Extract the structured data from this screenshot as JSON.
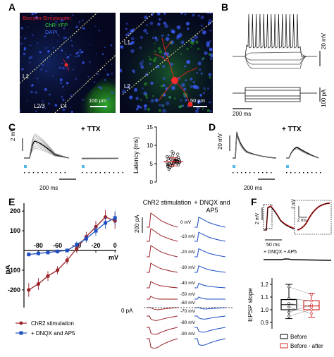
{
  "panel_labels": {
    "a": "A",
    "b": "B",
    "c": "C",
    "d": "D",
    "e": "E",
    "f": "F"
  },
  "panel_a": {
    "legend": [
      "Biocytin-Streptavidin",
      "ChR-YFP",
      "DAPI"
    ],
    "legend_colors": [
      "#e8202a",
      "#3fd23f",
      "#3b6cff"
    ],
    "left_layers": [
      "L1",
      "L2/3",
      "L4"
    ],
    "left_scalebar": "100 µm",
    "right_layers": [
      "L1",
      "L2"
    ],
    "right_scalebar": "50 µm"
  },
  "panel_b": {
    "voltage_scale": "20 mV",
    "current_scale": "100 pA",
    "time_scale": "200 ms"
  },
  "panel_c": {
    "voltage_scale": "2 mV",
    "ttx_label": "+ TTX",
    "time_scale": "200 ms",
    "chart_data": {
      "type": "scatter",
      "ylabel": "Latency (ms)",
      "yticks": [
        "0",
        "5",
        "10",
        "15"
      ],
      "ylim": [
        0,
        15
      ],
      "mean": 5.5,
      "sd": 1.1,
      "values": [
        5.5,
        5.1,
        5.9,
        6.3,
        4.8,
        5.6,
        6.0,
        5.2,
        4.5,
        6.7,
        5.8,
        5.3,
        4.9,
        6.1,
        5.4,
        7.2,
        3.9,
        5.7,
        6.5,
        5.0,
        4.6,
        6.9,
        5.5,
        5.2,
        6.2,
        4.3,
        7.6,
        5.9,
        5.1,
        6.4,
        4.7,
        5.6,
        8.2,
        3.5,
        5.3,
        6.0,
        4.4,
        6.8,
        5.4,
        5.8,
        7.9,
        4.1
      ]
    }
  },
  "panel_d": {
    "voltage_scale": "20 mV",
    "ttx_label": "+ TTX",
    "time_scale": "200 ms"
  },
  "panel_e": {
    "chart_data": {
      "type": "line",
      "xlabel": "mV",
      "ylabel": "pA",
      "xticks": [
        "-80",
        "-60",
        "-40",
        "-20",
        "0"
      ],
      "yticks": [
        "200",
        "100",
        "-100",
        "-200"
      ],
      "xlim": [
        -95,
        5
      ],
      "ylim": [
        -290,
        240
      ],
      "x": [
        -90,
        -80,
        -70,
        -60,
        -50,
        -40,
        -30,
        -20,
        -10,
        0
      ],
      "series": [
        {
          "name": "ChR2 stimulation",
          "color": "#9b2226",
          "marker": "circle",
          "values": [
            -200,
            -170,
            -130,
            -100,
            -50,
            10,
            70,
            120,
            170,
            150
          ],
          "errors": [
            35,
            30,
            25,
            20,
            20,
            20,
            25,
            30,
            35,
            40
          ]
        },
        {
          "name": "+ DNQX and AP5",
          "color": "#1f4fc2",
          "marker": "square",
          "values": [
            -20,
            -15,
            -10,
            -5,
            0,
            30,
            60,
            100,
            140,
            165
          ],
          "errors": [
            10,
            10,
            10,
            10,
            10,
            15,
            20,
            25,
            30,
            35
          ]
        }
      ]
    },
    "col_chr2": "ChR2 stimulation",
    "col_dnqx": "+ DNQX and AP5",
    "current_scale": "200 pA",
    "zero_label": "0 pA",
    "voltage_labels": [
      "0 mV",
      "-10 mV",
      "-20 mV",
      "-30 mV",
      "-40 mV",
      "-50 mV",
      "-60 mV",
      "-70 mV",
      "-80 mV",
      "-90 mV"
    ]
  },
  "panel_f": {
    "voltage_scale": "2 mV",
    "time_scale": "50 ms",
    "inset_voltage_scale": "2 mV",
    "inset_time_scale": "2 ms",
    "drug_label": "+ DNQX + AP5",
    "chart_data": {
      "type": "box",
      "ylabel": "EPSP slope",
      "yticks": [
        "1.2",
        "1.1",
        "1.0",
        "0.9"
      ],
      "ylim": [
        0.85,
        1.25
      ],
      "groups": [
        {
          "name": "Before",
          "color": "#000000",
          "min": 0.93,
          "q1": 1.0,
          "median": 1.04,
          "q3": 1.08,
          "max": 1.2
        },
        {
          "name": "Before - after",
          "color": "#d62828",
          "min": 0.94,
          "q1": 1.0,
          "median": 1.03,
          "q3": 1.07,
          "max": 1.13
        }
      ],
      "legend": [
        "Before",
        "Before - after"
      ]
    }
  }
}
